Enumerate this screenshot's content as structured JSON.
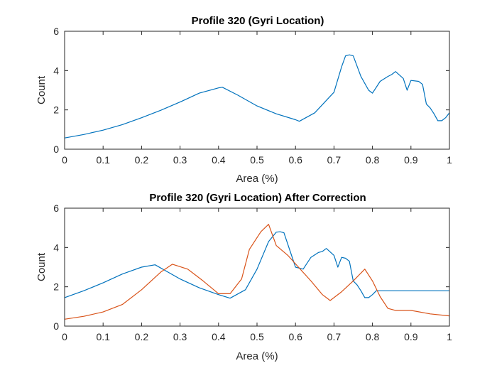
{
  "chart_data": [
    {
      "type": "line",
      "title": "Profile 320 (Gyri Location)",
      "xlabel": "Area (%)",
      "ylabel": "Count",
      "xlim": [
        0,
        1
      ],
      "ylim": [
        0,
        6
      ],
      "xticks": [
        0,
        0.1,
        0.2,
        0.3,
        0.4,
        0.5,
        0.6,
        0.7,
        0.8,
        0.9,
        1
      ],
      "yticks": [
        0,
        2,
        4,
        6
      ],
      "xtick_labels": [
        "0",
        "0.1",
        "0.2",
        "0.3",
        "0.4",
        "0.5",
        "0.6",
        "0.7",
        "0.8",
        "0.9",
        "1"
      ],
      "ytick_labels": [
        "0",
        "2",
        "4",
        "6"
      ],
      "grid": false,
      "series": [
        {
          "color": "#0072BD",
          "x": [
            0,
            0.05,
            0.1,
            0.15,
            0.2,
            0.25,
            0.3,
            0.35,
            0.4,
            0.41,
            0.45,
            0.5,
            0.55,
            0.6,
            0.61,
            0.65,
            0.7,
            0.72,
            0.73,
            0.74,
            0.75,
            0.77,
            0.79,
            0.8,
            0.82,
            0.84,
            0.85,
            0.86,
            0.88,
            0.89,
            0.9,
            0.92,
            0.93,
            0.94,
            0.95,
            0.96,
            0.97,
            0.98,
            0.99,
            1
          ],
          "y": [
            0.57,
            0.75,
            0.97,
            1.25,
            1.6,
            1.98,
            2.4,
            2.85,
            3.12,
            3.15,
            2.75,
            2.2,
            1.8,
            1.5,
            1.42,
            1.85,
            2.9,
            4.2,
            4.75,
            4.8,
            4.75,
            3.7,
            3.0,
            2.85,
            3.45,
            3.7,
            3.8,
            3.95,
            3.6,
            3.0,
            3.5,
            3.45,
            3.3,
            2.3,
            2.1,
            1.8,
            1.45,
            1.45,
            1.6,
            1.85
          ]
        }
      ]
    },
    {
      "type": "line",
      "title": "Profile 320 (Gyri Location) After Correction",
      "xlabel": "Area (%)",
      "ylabel": "Count",
      "xlim": [
        0,
        1
      ],
      "ylim": [
        0,
        6
      ],
      "xticks": [
        0,
        0.1,
        0.2,
        0.3,
        0.4,
        0.5,
        0.6,
        0.7,
        0.8,
        0.9,
        1
      ],
      "yticks": [
        0,
        2,
        4,
        6
      ],
      "xtick_labels": [
        "0",
        "0.1",
        "0.2",
        "0.3",
        "0.4",
        "0.5",
        "0.6",
        "0.7",
        "0.8",
        "0.9",
        "1"
      ],
      "ytick_labels": [
        "0",
        "2",
        "4",
        "6"
      ],
      "grid": false,
      "series": [
        {
          "color": "#0072BD",
          "x": [
            0,
            0.05,
            0.1,
            0.15,
            0.2,
            0.235,
            0.3,
            0.35,
            0.4,
            0.43,
            0.47,
            0.5,
            0.53,
            0.55,
            0.56,
            0.57,
            0.6,
            0.62,
            0.64,
            0.66,
            0.67,
            0.68,
            0.7,
            0.71,
            0.72,
            0.73,
            0.74,
            0.75,
            0.76,
            0.77,
            0.78,
            0.79,
            0.8,
            0.81,
            0.82,
            0.85,
            0.9,
            0.95,
            1
          ],
          "y": [
            1.45,
            1.8,
            2.2,
            2.65,
            3.0,
            3.12,
            2.4,
            1.95,
            1.6,
            1.42,
            1.85,
            2.9,
            4.3,
            4.78,
            4.8,
            4.75,
            3.0,
            2.9,
            3.5,
            3.75,
            3.8,
            3.95,
            3.6,
            3.0,
            3.5,
            3.45,
            3.3,
            2.3,
            2.1,
            1.8,
            1.45,
            1.45,
            1.6,
            1.8,
            1.8,
            1.8,
            1.8,
            1.8,
            1.8
          ]
        },
        {
          "color": "#D95319",
          "x": [
            0,
            0.05,
            0.1,
            0.15,
            0.2,
            0.25,
            0.28,
            0.32,
            0.36,
            0.4,
            0.43,
            0.46,
            0.48,
            0.51,
            0.53,
            0.55,
            0.58,
            0.61,
            0.64,
            0.67,
            0.69,
            0.72,
            0.75,
            0.78,
            0.8,
            0.82,
            0.84,
            0.86,
            0.9,
            0.95,
            1
          ],
          "y": [
            0.35,
            0.5,
            0.72,
            1.1,
            1.85,
            2.75,
            3.15,
            2.9,
            2.3,
            1.65,
            1.65,
            2.4,
            3.9,
            4.8,
            5.18,
            4.1,
            3.6,
            2.95,
            2.3,
            1.6,
            1.3,
            1.75,
            2.3,
            2.9,
            2.3,
            1.5,
            0.9,
            0.8,
            0.8,
            0.62,
            0.52
          ]
        }
      ]
    }
  ]
}
